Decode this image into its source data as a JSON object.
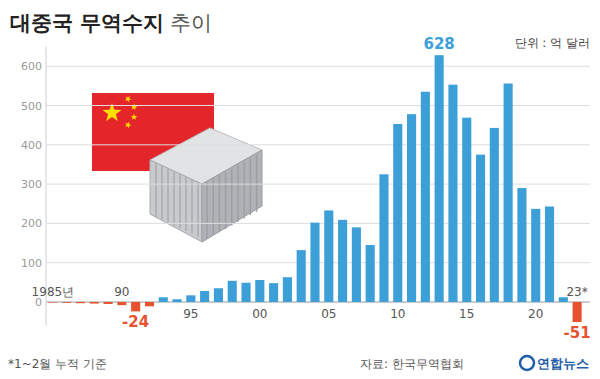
{
  "chart_data": {
    "type": "bar",
    "title": "대중국 무역수지",
    "subtitle": "추이",
    "y_label": "단위 : 억 달러",
    "note": "*1~2월 누적 기준",
    "source": "자료: 한국무역협회",
    "credit": "연합뉴스",
    "categories": [
      "1985년",
      null,
      null,
      null,
      null,
      "90",
      null,
      null,
      null,
      null,
      "95",
      null,
      null,
      null,
      null,
      "00",
      null,
      null,
      null,
      null,
      "05",
      null,
      null,
      null,
      null,
      "10",
      null,
      null,
      null,
      null,
      "15",
      null,
      null,
      null,
      null,
      "20",
      null,
      null,
      "23*"
    ],
    "values": [
      -1,
      -2,
      -3,
      -4,
      -5,
      -8,
      -24,
      -11,
      12,
      7,
      17,
      28,
      35,
      54,
      49,
      56,
      48,
      63,
      132,
      202,
      233,
      209,
      190,
      145,
      325,
      453,
      478,
      535,
      628,
      553,
      469,
      375,
      443,
      556,
      290,
      237,
      243,
      12,
      -51
    ],
    "value_labels": [
      null,
      null,
      null,
      null,
      null,
      null,
      "-24",
      null,
      null,
      null,
      null,
      null,
      null,
      null,
      null,
      null,
      null,
      null,
      null,
      null,
      null,
      null,
      null,
      null,
      null,
      null,
      null,
      null,
      "628",
      null,
      null,
      null,
      null,
      null,
      null,
      null,
      null,
      null,
      "-51"
    ],
    "colors": [
      "#e8532f",
      "#e8532f",
      "#e8532f",
      "#e8532f",
      "#e8532f",
      "#e8532f",
      "#e8532f",
      "#e8532f",
      "#3d9fd8",
      "#3d9fd8",
      "#3d9fd8",
      "#3d9fd8",
      "#3d9fd8",
      "#3d9fd8",
      "#3d9fd8",
      "#3d9fd8",
      "#3d9fd8",
      "#3d9fd8",
      "#3d9fd8",
      "#3d9fd8",
      "#3d9fd8",
      "#3d9fd8",
      "#3d9fd8",
      "#3d9fd8",
      "#3d9fd8",
      "#3d9fd8",
      "#3d9fd8",
      "#3d9fd8",
      "#3d9fd8",
      "#3d9fd8",
      "#3d9fd8",
      "#3d9fd8",
      "#3d9fd8",
      "#3d9fd8",
      "#3d9fd8",
      "#3d9fd8",
      "#3d9fd8",
      "#3d9fd8",
      "#e8532f"
    ],
    "ylim": [
      -60,
      650
    ],
    "yticks": [
      0,
      100,
      200,
      300,
      400,
      500,
      600
    ],
    "grid": true,
    "data_labels": true
  }
}
